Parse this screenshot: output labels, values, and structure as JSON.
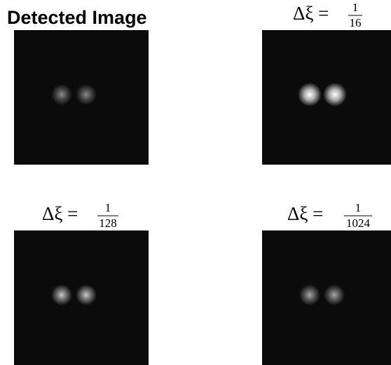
{
  "panels": [
    {
      "title": "Detected Image"
    },
    {
      "lhs": "Δξ =",
      "numerator": "1",
      "denominator": "16"
    },
    {
      "lhs": "Δξ =",
      "numerator": "1",
      "denominator": "128"
    },
    {
      "lhs": "Δξ =",
      "numerator": "1",
      "denominator": "1024"
    }
  ]
}
